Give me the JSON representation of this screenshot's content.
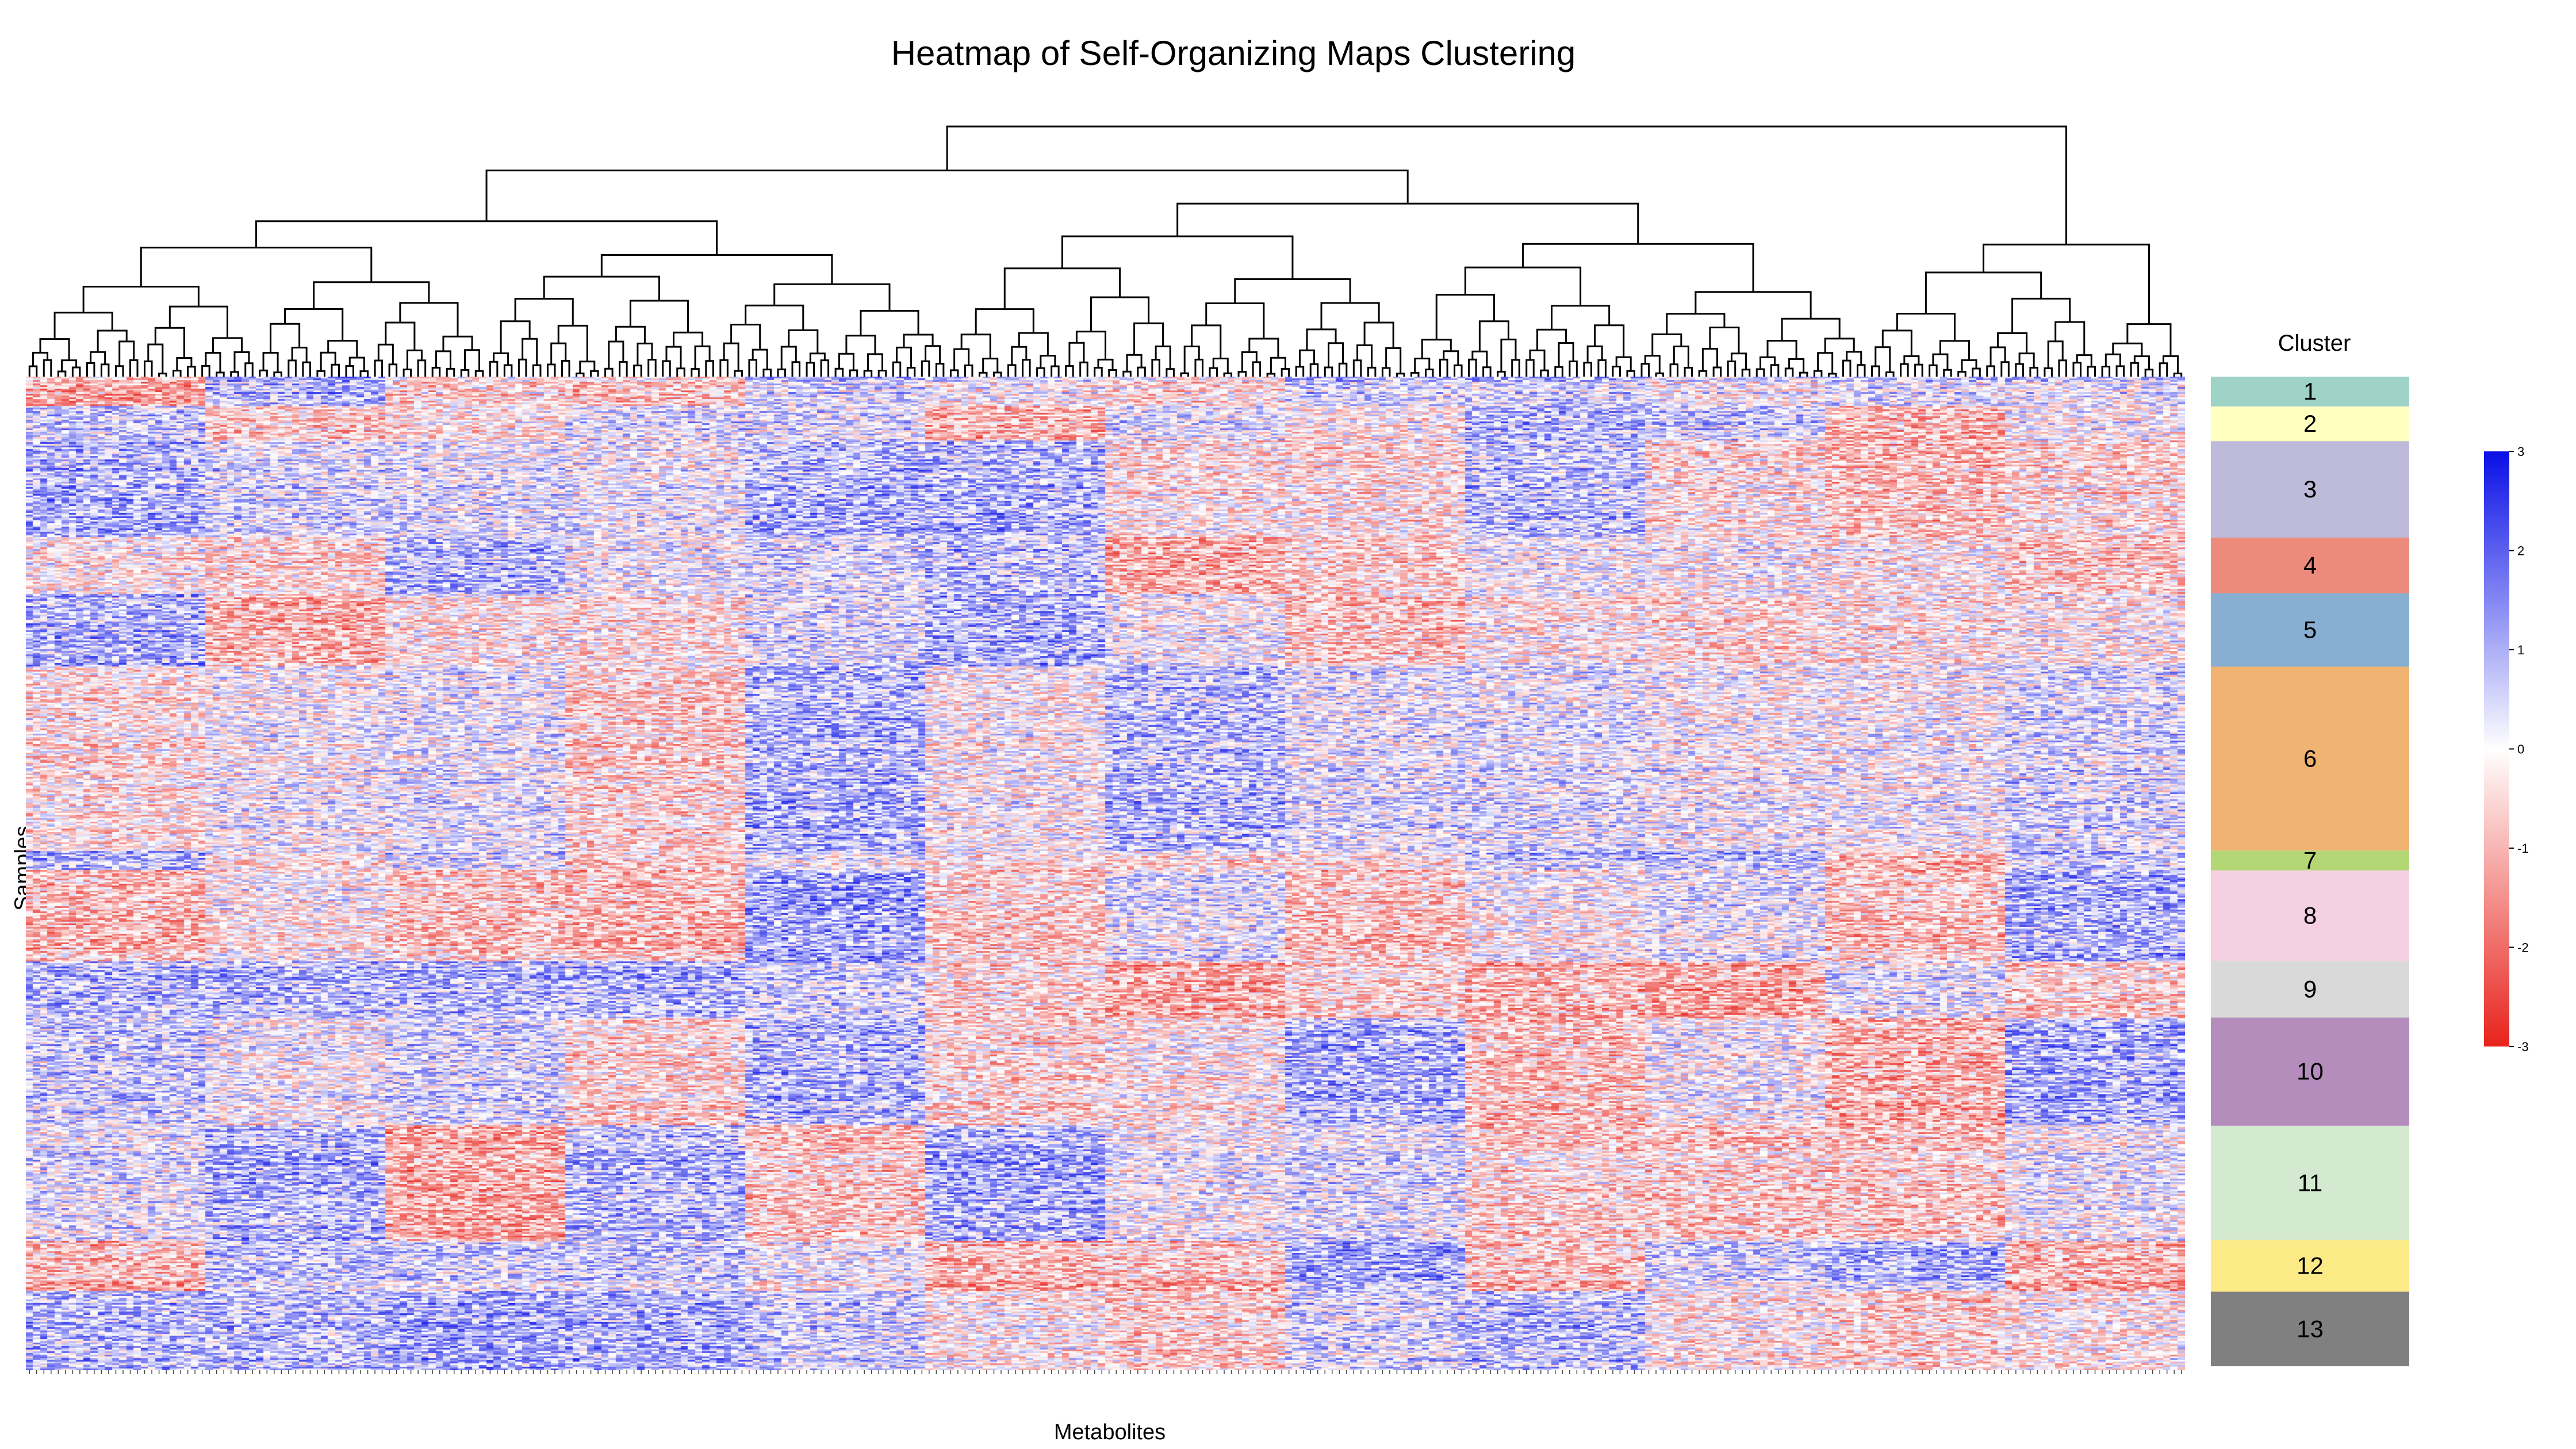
{
  "chart_data": {
    "type": "heatmap",
    "title": "Heatmap of Self-Organizing Maps Clustering",
    "xlabel": "Metabolites",
    "ylabel": "Samples",
    "annotation_title": "Cluster",
    "clusters": [
      {
        "label": "1",
        "color": "#9fd3c7",
        "fraction": 0.03
      },
      {
        "label": "2",
        "color": "#ffffbf",
        "fraction": 0.035
      },
      {
        "label": "3",
        "color": "#bebad9",
        "fraction": 0.097
      },
      {
        "label": "4",
        "color": "#ec8b7c",
        "fraction": 0.056
      },
      {
        "label": "5",
        "color": "#88afd1",
        "fraction": 0.074
      },
      {
        "label": "6",
        "color": "#f0b371",
        "fraction": 0.185
      },
      {
        "label": "7",
        "color": "#b4d776",
        "fraction": 0.02
      },
      {
        "label": "8",
        "color": "#f4d0e2",
        "fraction": 0.091
      },
      {
        "label": "9",
        "color": "#d9d9d9",
        "fraction": 0.057
      },
      {
        "label": "10",
        "color": "#b48dbd",
        "fraction": 0.109
      },
      {
        "label": "11",
        "color": "#d4ead0",
        "fraction": 0.115
      },
      {
        "label": "12",
        "color": "#fcea87",
        "fraction": 0.052
      },
      {
        "label": "13",
        "color": "#808080",
        "fraction": 0.075
      }
    ],
    "color_scale": {
      "min": -3,
      "max": 3,
      "ticks": [
        "3",
        "2",
        "1",
        "0",
        "-1",
        "-2",
        "-3"
      ],
      "low_color": "#e8231c",
      "mid_color": "#ffffff",
      "high_color": "#0a0fe6"
    },
    "grid": false,
    "legend_position": "right"
  }
}
